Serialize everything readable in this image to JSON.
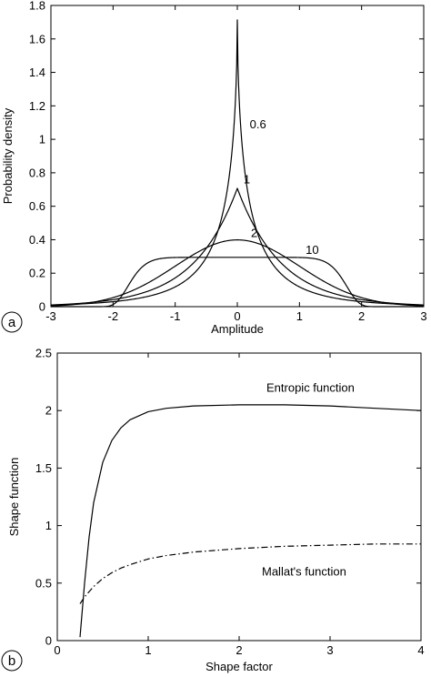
{
  "chart_data": [
    {
      "panel_label": "a",
      "type": "line",
      "title": "",
      "xlabel": "Amplitude",
      "ylabel": "Probability density",
      "xlim": [
        -3,
        3
      ],
      "ylim": [
        0,
        1.8
      ],
      "xticks": [
        "-3",
        "-2",
        "-1",
        "0",
        "1",
        "2",
        "3"
      ],
      "yticks": [
        "0",
        "0.2",
        "0.4",
        "0.6",
        "0.8",
        "1",
        "1.2",
        "1.4",
        "1.6",
        "1.8"
      ],
      "grid": false,
      "series": [
        {
          "name": "0.6",
          "shape_factor": 0.6,
          "label_x": 0.2,
          "label_y": 1.09
        },
        {
          "name": "1",
          "shape_factor": 1,
          "label_x": 0.1,
          "label_y": 0.76
        },
        {
          "name": "2",
          "shape_factor": 2,
          "label_x": 0.22,
          "label_y": 0.44
        },
        {
          "name": "10",
          "shape_factor": 10,
          "label_x": 1.1,
          "label_y": 0.34
        }
      ]
    },
    {
      "panel_label": "b",
      "type": "line",
      "title": "",
      "xlabel": "Shape factor",
      "ylabel": "Shape function",
      "xlim": [
        0,
        4
      ],
      "ylim": [
        0,
        2.5
      ],
      "xticks": [
        "0",
        "1",
        "2",
        "3",
        "4"
      ],
      "yticks": [
        "0",
        "0.5",
        "1",
        "1.5",
        "2",
        "2.5"
      ],
      "grid": false,
      "series": [
        {
          "name": "Entropic function",
          "style": "solid",
          "label_x": 2.3,
          "label_y": 2.2,
          "x": [
            0.25,
            0.3,
            0.35,
            0.4,
            0.5,
            0.6,
            0.7,
            0.8,
            1.0,
            1.2,
            1.5,
            2.0,
            2.5,
            3.0,
            3.5,
            4.0
          ],
          "y": [
            0.03,
            0.5,
            0.9,
            1.2,
            1.55,
            1.74,
            1.85,
            1.92,
            1.99,
            2.02,
            2.04,
            2.05,
            2.05,
            2.04,
            2.02,
            2.0
          ]
        },
        {
          "name": "Mallat's function",
          "style": "dashdot",
          "label_x": 2.25,
          "label_y": 0.6,
          "x": [
            0.25,
            0.3,
            0.4,
            0.5,
            0.6,
            0.7,
            0.8,
            1.0,
            1.2,
            1.5,
            2.0,
            2.5,
            3.0,
            3.5,
            4.0
          ],
          "y": [
            0.32,
            0.38,
            0.47,
            0.54,
            0.59,
            0.63,
            0.66,
            0.71,
            0.74,
            0.77,
            0.8,
            0.82,
            0.83,
            0.84,
            0.84
          ]
        }
      ]
    }
  ]
}
